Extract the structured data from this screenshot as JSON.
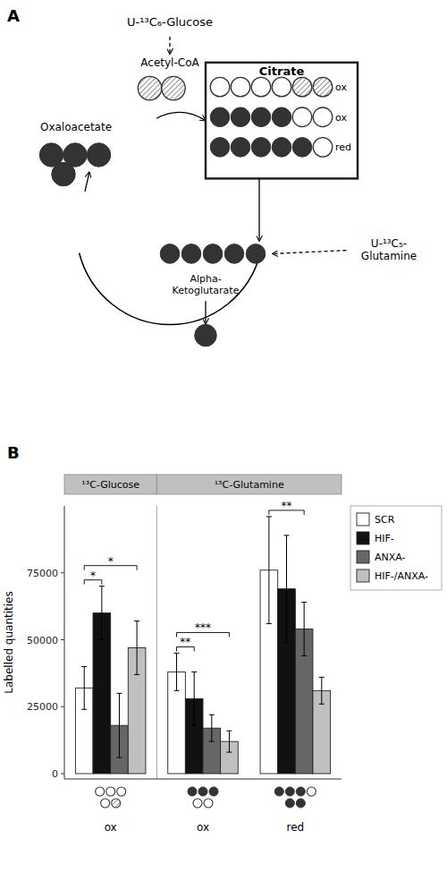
{
  "chart_data": [
    {
      "type": "diagram",
      "title": "A",
      "annotations": [
        "U-¹³C₆-Glucose",
        "Acetyl-CoA",
        "Citrate",
        "ox",
        "ox",
        "red",
        "Oxaloacetate",
        "Alpha-\nKetoglutarate",
        "U-¹³C₅-\nGlutamine"
      ]
    },
    {
      "type": "bar",
      "title": "B",
      "categories": [
        "ox",
        "ox",
        "red"
      ],
      "category_groups": [
        "¹³C-Glucose",
        "¹³C-Glutamine",
        "¹³C-Glutamine"
      ],
      "series": [
        {
          "name": "SCR",
          "color": "#ffffff",
          "values": [
            32000,
            38000,
            76000
          ],
          "errors": [
            8000,
            7000,
            20000
          ]
        },
        {
          "name": "HIF-",
          "color": "#111111",
          "values": [
            60000,
            28000,
            69000
          ],
          "errors": [
            10000,
            10000,
            20000
          ]
        },
        {
          "name": "ANXA-",
          "color": "#666666",
          "values": [
            18000,
            17000,
            54000
          ],
          "errors": [
            12000,
            5000,
            10000
          ]
        },
        {
          "name": "HIF-/ANXA-",
          "color": "#c0c0c0",
          "values": [
            47000,
            12000,
            31000
          ],
          "errors": [
            10000,
            4000,
            5000
          ]
        }
      ],
      "ylabel": "Labelled quantities",
      "ylim": [
        -2000,
        100000
      ],
      "yticks": [
        0,
        25000,
        50000,
        75000
      ],
      "legend": "right",
      "significance": [
        [
          {
            "text": "*",
            "between": [
              "SCR",
              "HIF-"
            ]
          },
          {
            "text": "*",
            "between": [
              "SCR",
              "HIF-/ANXA-"
            ]
          }
        ],
        [
          {
            "text": "**",
            "between": [
              "SCR",
              "HIF-"
            ]
          },
          {
            "text": "***",
            "between": [
              "SCR",
              "HIF-/ANXA-"
            ]
          }
        ],
        [
          {
            "text": "**",
            "between": [
              "SCR",
              "ANXA-"
            ]
          }
        ]
      ]
    }
  ]
}
